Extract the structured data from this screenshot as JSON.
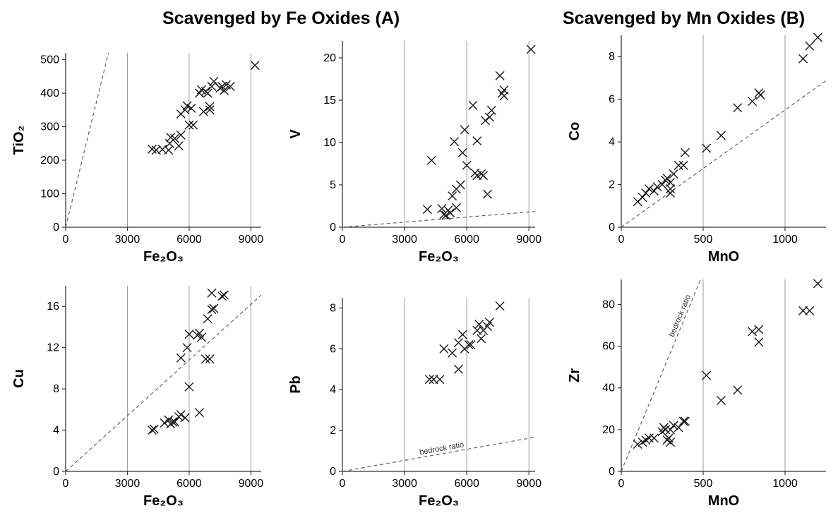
{
  "headings": {
    "a": "Scavenged by Fe Oxides (A)",
    "b": "Scavenged by Mn Oxides (B)"
  },
  "colors": {
    "marker": "#1a1a1a",
    "grid": "#9a9a9a",
    "axis": "#333333",
    "ratio_line": "#555555"
  },
  "chart_data": [
    {
      "type": "scatter",
      "id": "tio2",
      "xlabel": "Fe₂O₃",
      "ylabel": "TiO₂",
      "xlim": [
        0,
        9500
      ],
      "ylim": [
        0,
        520
      ],
      "xticks": [
        0,
        3000,
        6000,
        9000
      ],
      "yticks": [
        0,
        100,
        200,
        300,
        400,
        500
      ],
      "grid": "vertical",
      "ratio_line": {
        "slope": 0.25,
        "label": ""
      },
      "points": [
        [
          4200,
          233
        ],
        [
          4400,
          230
        ],
        [
          4700,
          232
        ],
        [
          5000,
          230
        ],
        [
          5050,
          250
        ],
        [
          5100,
          268
        ],
        [
          5300,
          265
        ],
        [
          5500,
          243
        ],
        [
          5600,
          275
        ],
        [
          5600,
          338
        ],
        [
          5800,
          350
        ],
        [
          5900,
          362
        ],
        [
          6000,
          305
        ],
        [
          6100,
          355
        ],
        [
          6200,
          305
        ],
        [
          6500,
          400
        ],
        [
          6600,
          410
        ],
        [
          6700,
          345
        ],
        [
          6800,
          405
        ],
        [
          6900,
          400
        ],
        [
          7000,
          360
        ],
        [
          7000,
          350
        ],
        [
          7100,
          420
        ],
        [
          7200,
          435
        ],
        [
          7500,
          415
        ],
        [
          7600,
          420
        ],
        [
          7700,
          408
        ],
        [
          7800,
          425
        ],
        [
          8000,
          420
        ],
        [
          9200,
          483
        ]
      ]
    },
    {
      "type": "scatter",
      "id": "v",
      "xlabel": "Fe₂O₃",
      "ylabel": "V",
      "xlim": [
        0,
        9300
      ],
      "ylim": [
        0,
        22
      ],
      "xticks": [
        0,
        3000,
        6000,
        9000
      ],
      "yticks": [
        0,
        5,
        10,
        15,
        20
      ],
      "grid": "vertical",
      "ratio_line": {
        "slope": 0.0002,
        "label": ""
      },
      "points": [
        [
          4100,
          2.1
        ],
        [
          4300,
          7.9
        ],
        [
          4800,
          2.2
        ],
        [
          4900,
          1.5
        ],
        [
          5000,
          1.4
        ],
        [
          5100,
          2.0
        ],
        [
          5200,
          1.7
        ],
        [
          5300,
          3.7
        ],
        [
          5400,
          10.1
        ],
        [
          5500,
          4.5
        ],
        [
          5500,
          2.3
        ],
        [
          5700,
          5.0
        ],
        [
          5800,
          8.8
        ],
        [
          5900,
          11.5
        ],
        [
          6000,
          7.3
        ],
        [
          6300,
          14.4
        ],
        [
          6400,
          6.4
        ],
        [
          6500,
          6.1
        ],
        [
          6500,
          10.2
        ],
        [
          6700,
          6.3
        ],
        [
          6800,
          6.1
        ],
        [
          6900,
          12.6
        ],
        [
          7000,
          3.9
        ],
        [
          7100,
          13.0
        ],
        [
          7200,
          13.8
        ],
        [
          7600,
          17.9
        ],
        [
          7700,
          15.8
        ],
        [
          7800,
          15.5
        ],
        [
          7800,
          16.2
        ],
        [
          9100,
          21.0
        ]
      ]
    },
    {
      "type": "scatter",
      "id": "co",
      "xlabel": "MnO",
      "ylabel": "Co",
      "xlim": [
        0,
        1250
      ],
      "ylim": [
        0,
        9
      ],
      "xticks": [
        0,
        500,
        1000
      ],
      "yticks": [
        0,
        2,
        4,
        6,
        8
      ],
      "grid": "vertical",
      "ratio_line": {
        "slope": 0.0055,
        "label": ""
      },
      "points": [
        [
          100,
          1.2
        ],
        [
          130,
          1.4
        ],
        [
          150,
          1.6
        ],
        [
          170,
          1.8
        ],
        [
          200,
          1.7
        ],
        [
          220,
          1.9
        ],
        [
          250,
          2.0
        ],
        [
          270,
          2.2
        ],
        [
          280,
          2.3
        ],
        [
          300,
          2.1
        ],
        [
          300,
          1.8
        ],
        [
          300,
          1.6
        ],
        [
          320,
          2.5
        ],
        [
          350,
          2.9
        ],
        [
          380,
          2.9
        ],
        [
          390,
          3.5
        ],
        [
          520,
          3.7
        ],
        [
          610,
          4.3
        ],
        [
          710,
          5.6
        ],
        [
          800,
          5.9
        ],
        [
          840,
          6.3
        ],
        [
          850,
          6.2
        ],
        [
          1110,
          7.9
        ],
        [
          1150,
          8.5
        ],
        [
          1200,
          8.9
        ]
      ]
    },
    {
      "type": "scatter",
      "id": "cu",
      "xlabel": "Fe₂O₃",
      "ylabel": "Cu",
      "xlim": [
        0,
        9500
      ],
      "ylim": [
        0,
        18
      ],
      "xticks": [
        0,
        3000,
        6000,
        9000
      ],
      "yticks": [
        0,
        4,
        8,
        12,
        16
      ],
      "grid": "vertical",
      "ratio_line": {
        "slope": 0.0018,
        "label": ""
      },
      "points": [
        [
          4200,
          4.0
        ],
        [
          4300,
          4.1
        ],
        [
          4800,
          4.7
        ],
        [
          5000,
          5.0
        ],
        [
          5100,
          4.6
        ],
        [
          5200,
          4.8
        ],
        [
          5300,
          4.8
        ],
        [
          5500,
          5.3
        ],
        [
          5600,
          5.5
        ],
        [
          5600,
          11.0
        ],
        [
          5800,
          5.2
        ],
        [
          5900,
          12.0
        ],
        [
          6000,
          13.3
        ],
        [
          6000,
          8.2
        ],
        [
          6400,
          13.2
        ],
        [
          6500,
          13.4
        ],
        [
          6500,
          5.7
        ],
        [
          6600,
          13.0
        ],
        [
          6800,
          10.9
        ],
        [
          6900,
          14.8
        ],
        [
          7000,
          10.9
        ],
        [
          7100,
          17.3
        ],
        [
          7100,
          15.7
        ],
        [
          7200,
          15.8
        ],
        [
          7600,
          17.0
        ],
        [
          7700,
          17.1
        ]
      ]
    },
    {
      "type": "scatter",
      "id": "pb",
      "xlabel": "Fe₂O₃",
      "ylabel": "Pb",
      "xlim": [
        0,
        9300
      ],
      "ylim": [
        0,
        8.5
      ],
      "xticks": [
        0,
        3000,
        6000,
        9000
      ],
      "yticks": [
        0,
        2,
        4,
        6,
        8
      ],
      "grid": "vertical",
      "ratio_line": {
        "slope": 0.00018,
        "label": "bedrock ratio"
      },
      "points": [
        [
          4200,
          4.5
        ],
        [
          4400,
          4.5
        ],
        [
          4700,
          4.5
        ],
        [
          4900,
          6.0
        ],
        [
          5300,
          5.8
        ],
        [
          5600,
          5.0
        ],
        [
          5600,
          6.3
        ],
        [
          5800,
          6.7
        ],
        [
          5900,
          6.0
        ],
        [
          6100,
          6.2
        ],
        [
          6200,
          6.2
        ],
        [
          6500,
          6.9
        ],
        [
          6600,
          7.2
        ],
        [
          6700,
          6.5
        ],
        [
          6800,
          6.9
        ],
        [
          7000,
          7.1
        ],
        [
          7100,
          7.3
        ],
        [
          7600,
          8.1
        ]
      ]
    },
    {
      "type": "scatter",
      "id": "zr",
      "xlabel": "MnO",
      "ylabel": "Zr",
      "xlim": [
        0,
        1250
      ],
      "ylim": [
        0,
        92
      ],
      "xticks": [
        0,
        500,
        1000
      ],
      "yticks": [
        0,
        20,
        40,
        60,
        80
      ],
      "grid": "vertical",
      "ratio_line": {
        "slope": 0.19,
        "label": "bedrock ratio"
      },
      "points": [
        [
          100,
          13
        ],
        [
          130,
          14
        ],
        [
          150,
          15
        ],
        [
          170,
          16
        ],
        [
          200,
          16
        ],
        [
          250,
          19
        ],
        [
          260,
          21
        ],
        [
          270,
          20
        ],
        [
          280,
          15
        ],
        [
          290,
          16
        ],
        [
          300,
          14
        ],
        [
          300,
          20
        ],
        [
          320,
          22
        ],
        [
          350,
          21
        ],
        [
          380,
          24
        ],
        [
          390,
          24
        ],
        [
          520,
          46
        ],
        [
          610,
          34
        ],
        [
          710,
          39
        ],
        [
          800,
          67
        ],
        [
          840,
          68
        ],
        [
          840,
          62
        ],
        [
          1110,
          77
        ],
        [
          1150,
          77
        ],
        [
          1200,
          90
        ]
      ]
    }
  ]
}
